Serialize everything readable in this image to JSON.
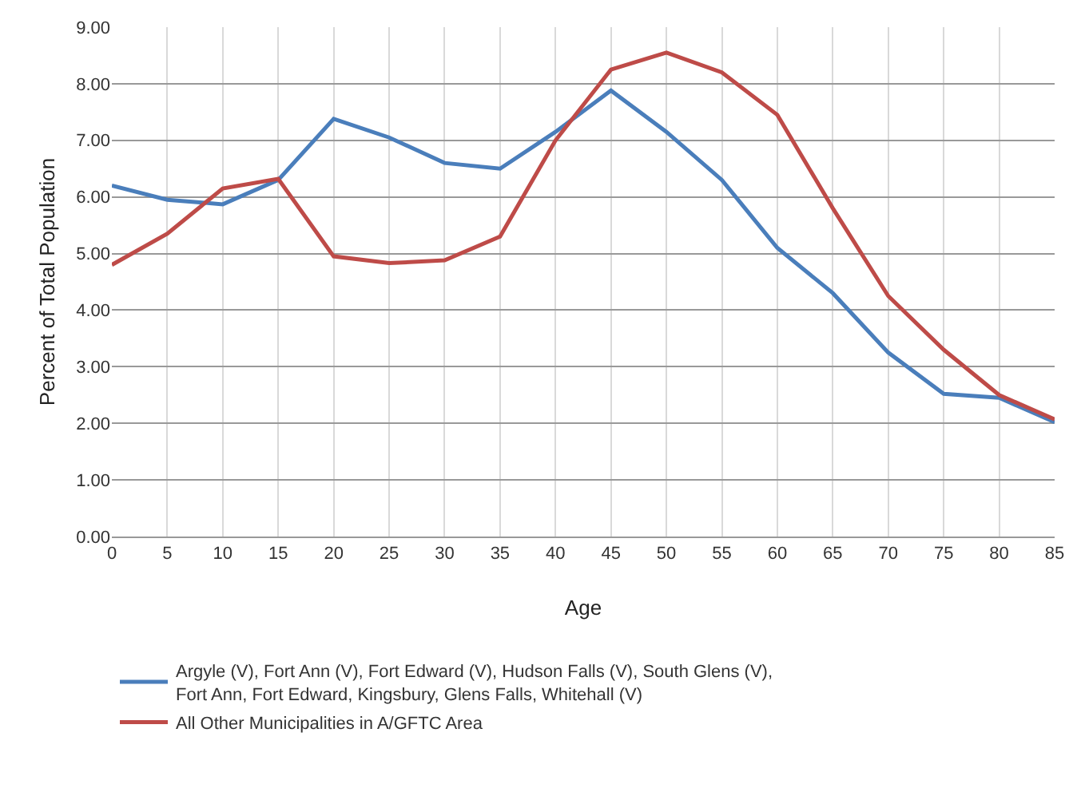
{
  "chart_data": {
    "type": "line",
    "xlabel": "Age",
    "ylabel": "Percent of Total Population",
    "x": [
      0,
      5,
      10,
      15,
      20,
      25,
      30,
      35,
      40,
      45,
      50,
      55,
      60,
      65,
      70,
      75,
      80,
      85
    ],
    "series": [
      {
        "name": "Argyle (V), Fort Ann (V), Fort Edward (V), Hudson Falls (V), South Glens (V), Fort Ann, Fort Edward, Kingsbury, Glens Falls, Whitehall (V)",
        "color": "#4a7ebb",
        "values": [
          6.2,
          5.95,
          5.87,
          6.3,
          7.38,
          7.05,
          6.6,
          6.5,
          7.15,
          7.88,
          7.15,
          6.3,
          5.1,
          4.3,
          3.25,
          2.52,
          2.45,
          2.02
        ]
      },
      {
        "name": "All Other Municipalities in A/GFTC Area",
        "color": "#be4b48",
        "values": [
          4.8,
          5.35,
          6.15,
          6.32,
          4.95,
          4.83,
          4.88,
          5.3,
          7.0,
          8.25,
          8.55,
          8.2,
          7.45,
          5.8,
          4.25,
          3.3,
          2.5,
          2.07
        ]
      }
    ],
    "xlim": [
      0,
      85
    ],
    "xticks": [
      0,
      5,
      10,
      15,
      20,
      25,
      30,
      35,
      40,
      45,
      50,
      55,
      60,
      65,
      70,
      75,
      80,
      85
    ],
    "ylim": [
      0,
      9
    ],
    "yticks": [
      {
        "value": 0,
        "label": "0.00"
      },
      {
        "value": 1,
        "label": "1.00"
      },
      {
        "value": 2,
        "label": "2.00"
      },
      {
        "value": 3,
        "label": "3.00"
      },
      {
        "value": 4,
        "label": "4.00"
      },
      {
        "value": 5,
        "label": "5.00"
      },
      {
        "value": 6,
        "label": "6.00"
      },
      {
        "value": 7,
        "label": "7.00"
      },
      {
        "value": 8,
        "label": "8.00"
      },
      {
        "value": 9,
        "label": "9.00"
      }
    ],
    "grid": true,
    "legend": "bottom",
    "marker": "none",
    "line_style": "solid"
  }
}
